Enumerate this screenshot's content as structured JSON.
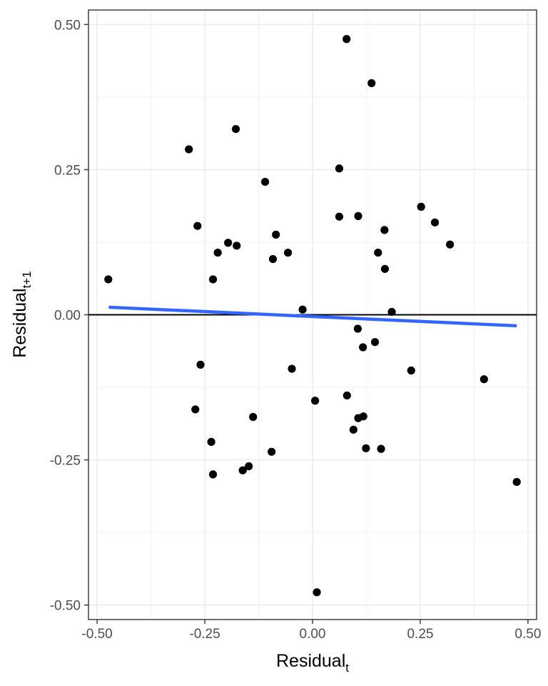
{
  "chart_data": {
    "type": "scatter",
    "title": "",
    "xlabel": {
      "main": "Residual",
      "sub": "t"
    },
    "ylabel": {
      "main": "Residual",
      "sub": "t+1"
    },
    "xlim": [
      -0.52,
      0.52
    ],
    "ylim": [
      -0.525,
      0.525
    ],
    "x_ticks": [
      -0.5,
      -0.25,
      0,
      0.25,
      0.5
    ],
    "x_tick_labels": [
      "-0.50",
      "-0.25",
      "0.00",
      "0.25",
      "0.50"
    ],
    "y_ticks": [
      -0.5,
      -0.25,
      0,
      0.25,
      0.5
    ],
    "y_tick_labels": [
      "-0.50",
      "-0.25",
      "0.00",
      "0.25",
      "0.50"
    ],
    "grid": true,
    "reference_line": {
      "y": 0,
      "color": "#000000"
    },
    "trend_line": {
      "color": "#3366FF",
      "x": [
        -0.473,
        0.474
      ],
      "y": [
        0.013,
        -0.019
      ]
    },
    "point_color": "#000000",
    "points": [
      {
        "x": 0.079,
        "y": 0.475
      },
      {
        "x": 0.137,
        "y": 0.399
      },
      {
        "x": -0.178,
        "y": 0.32
      },
      {
        "x": -0.287,
        "y": 0.285
      },
      {
        "x": 0.062,
        "y": 0.252
      },
      {
        "x": -0.11,
        "y": 0.229
      },
      {
        "x": 0.252,
        "y": 0.186
      },
      {
        "x": 0.062,
        "y": 0.169
      },
      {
        "x": 0.106,
        "y": 0.17
      },
      {
        "x": 0.284,
        "y": 0.159
      },
      {
        "x": -0.267,
        "y": 0.153
      },
      {
        "x": 0.167,
        "y": 0.146
      },
      {
        "x": -0.085,
        "y": 0.138
      },
      {
        "x": -0.196,
        "y": 0.124
      },
      {
        "x": -0.176,
        "y": 0.119
      },
      {
        "x": 0.319,
        "y": 0.121
      },
      {
        "x": -0.22,
        "y": 0.107
      },
      {
        "x": -0.057,
        "y": 0.107
      },
      {
        "x": 0.152,
        "y": 0.107
      },
      {
        "x": -0.092,
        "y": 0.096
      },
      {
        "x": 0.168,
        "y": 0.079
      },
      {
        "x": -0.474,
        "y": 0.061
      },
      {
        "x": -0.231,
        "y": 0.061
      },
      {
        "x": -0.023,
        "y": 0.009
      },
      {
        "x": 0.184,
        "y": 0.005
      },
      {
        "x": 0.105,
        "y": -0.024
      },
      {
        "x": 0.145,
        "y": -0.047
      },
      {
        "x": 0.117,
        "y": -0.056
      },
      {
        "x": -0.26,
        "y": -0.086
      },
      {
        "x": -0.048,
        "y": -0.093
      },
      {
        "x": 0.229,
        "y": -0.096
      },
      {
        "x": 0.398,
        "y": -0.111
      },
      {
        "x": 0.08,
        "y": -0.139
      },
      {
        "x": 0.006,
        "y": -0.148
      },
      {
        "x": -0.272,
        "y": -0.163
      },
      {
        "x": -0.138,
        "y": -0.176
      },
      {
        "x": 0.118,
        "y": -0.175
      },
      {
        "x": 0.106,
        "y": -0.178
      },
      {
        "x": 0.095,
        "y": -0.198
      },
      {
        "x": -0.235,
        "y": -0.219
      },
      {
        "x": 0.124,
        "y": -0.23
      },
      {
        "x": 0.159,
        "y": -0.231
      },
      {
        "x": -0.095,
        "y": -0.236
      },
      {
        "x": -0.148,
        "y": -0.261
      },
      {
        "x": -0.162,
        "y": -0.268
      },
      {
        "x": -0.231,
        "y": -0.275
      },
      {
        "x": 0.474,
        "y": -0.288
      },
      {
        "x": 0.01,
        "y": -0.478
      }
    ]
  }
}
